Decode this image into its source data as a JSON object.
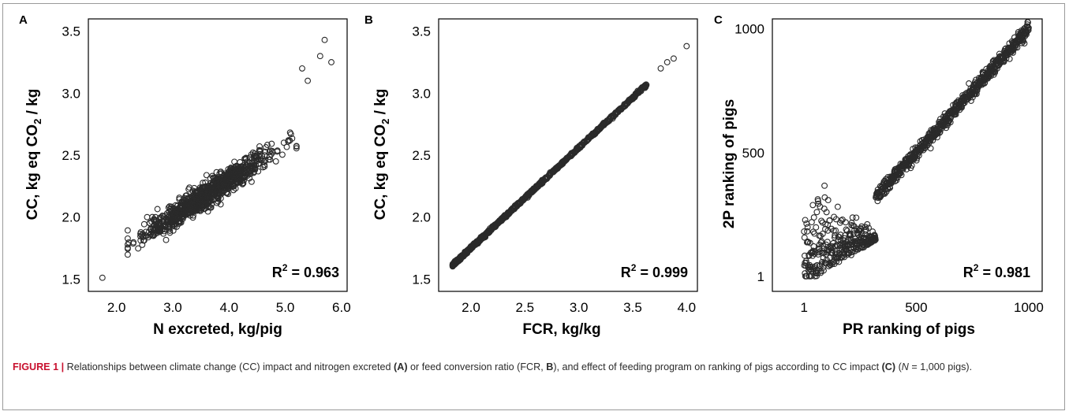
{
  "chart_data": [
    {
      "type": "scatter",
      "panel": "A",
      "xlabel": "N excreted, kg/pig",
      "ylabel_main": "CC, kg eq CO",
      "ylabel_sub": "2",
      "ylabel_tail": " / kg",
      "xlim": [
        1.5,
        6.1
      ],
      "ylim": [
        1.4,
        3.6
      ],
      "x_ticks": [
        2.0,
        3.0,
        4.0,
        5.0,
        6.0
      ],
      "x_tick_labels": [
        "2.0",
        "3.0",
        "4.0",
        "5.0",
        "6.0"
      ],
      "y_ticks": [
        1.5,
        2.0,
        2.5,
        3.0,
        3.5
      ],
      "y_tick_labels": [
        "1.5",
        "2.0",
        "2.5",
        "3.0",
        "3.5"
      ],
      "r2_label": "R",
      "r2_value": " = 0.963",
      "n_points": 1000,
      "trend": {
        "x_mean": 3.6,
        "x_sd": 0.55,
        "intercept": 1.1,
        "slope": 0.3,
        "y_noise": 0.05
      },
      "extra_points": [
        [
          1.75,
          1.51
        ],
        [
          5.7,
          3.43
        ],
        [
          5.82,
          3.25
        ],
        [
          5.62,
          3.3
        ],
        [
          5.3,
          3.2
        ],
        [
          5.1,
          2.67
        ],
        [
          5.4,
          3.1
        ]
      ]
    },
    {
      "type": "scatter",
      "panel": "B",
      "xlabel": "FCR, kg/kg",
      "ylabel_main": "CC, kg eq CO",
      "ylabel_sub": "2",
      "ylabel_tail": " / kg",
      "xlim": [
        1.7,
        4.1
      ],
      "ylim": [
        1.4,
        3.6
      ],
      "x_ticks": [
        2.0,
        2.5,
        3.0,
        3.5,
        4.0
      ],
      "x_tick_labels": [
        "2.0",
        "2.5",
        "3.0",
        "3.5",
        "4.0"
      ],
      "y_ticks": [
        1.5,
        2.0,
        2.5,
        3.0,
        3.5
      ],
      "y_tick_labels": [
        "1.5",
        "2.0",
        "2.5",
        "3.0",
        "3.5"
      ],
      "r2_label": "R",
      "r2_value": " = 0.999",
      "n_points": 1000,
      "trend": {
        "x_min": 1.83,
        "x_max": 4.0,
        "intercept": 0.13,
        "slope": 0.81,
        "y_noise": 0.006
      },
      "extra_points": [
        [
          3.62,
          3.05
        ],
        [
          3.76,
          3.2
        ],
        [
          3.82,
          3.25
        ],
        [
          3.88,
          3.28
        ],
        [
          4.0,
          3.38
        ]
      ]
    },
    {
      "type": "scatter",
      "panel": "C",
      "xlabel": "PR ranking of pigs",
      "ylabel": "2P ranking of pigs",
      "xlim": [
        -140,
        1060
      ],
      "ylim": [
        -60,
        1040
      ],
      "x_ticks": [
        1,
        500,
        1000
      ],
      "x_tick_labels": [
        "1",
        "500",
        "1000"
      ],
      "y_ticks": [
        1,
        500,
        1000
      ],
      "y_tick_labels": [
        "1",
        "500",
        "1000"
      ],
      "r2_label": "R",
      "r2_value": " = 0.981",
      "n_points": 1000,
      "extra_points": [
        [
          5,
          55
        ],
        [
          960,
          960
        ],
        [
          920,
          905
        ],
        [
          900,
          880
        ],
        [
          880,
          870
        ]
      ]
    }
  ],
  "caption": {
    "figure_label": "FIGURE 1 |",
    "text_1": " Relationships between climate change (CC) impact and nitrogen excreted ",
    "bold_a": "(A)",
    "text_2": " or feed conversion ratio (FCR, ",
    "bold_b": "B",
    "text_3": "), and effect of feeding program on ranking of pigs according to CC impact ",
    "bold_c": "(C)",
    "text_4": " (",
    "italic_n": "N",
    "text_5": " = 1,000 pigs)."
  }
}
